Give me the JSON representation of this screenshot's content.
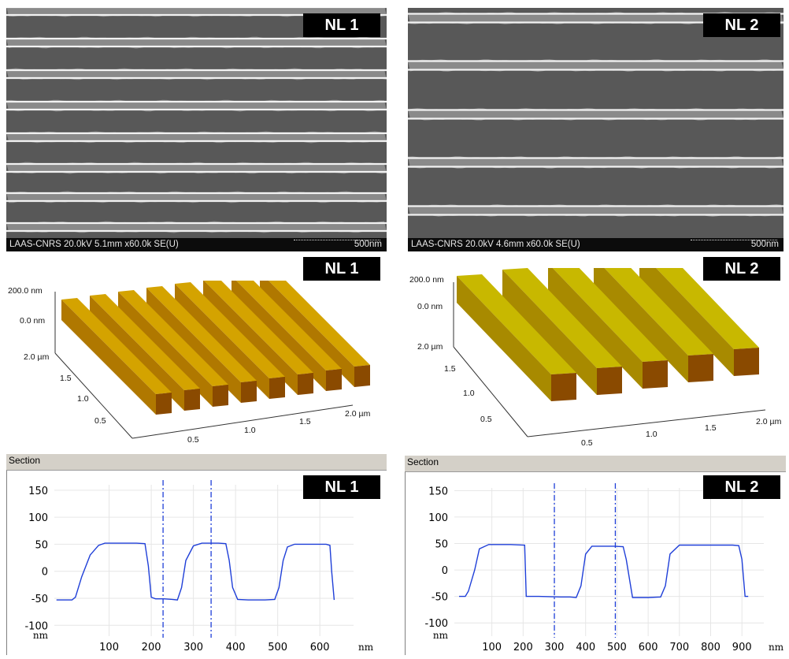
{
  "panels": {
    "nl1": "NL 1",
    "nl2": "NL 2"
  },
  "sem": {
    "nl1": {
      "info": "LAAS-CNRS 20.0kV 5.1mm x60.0k SE(U)",
      "scale": "500nm"
    },
    "nl2": {
      "info": "LAAS-CNRS 20.0kV 4.6mm x60.0k SE(U)",
      "scale": "500nm"
    }
  },
  "afm": {
    "nl1": {
      "z_labels": [
        "200.0 nm",
        "0.0 nm"
      ],
      "y_labels": [
        "2.0 µm",
        "1.5",
        "1.0",
        "0.5"
      ],
      "x_labels": [
        "0.5",
        "1.0",
        "1.5",
        "2.0 µm"
      ]
    },
    "nl2": {
      "z_labels": [
        "200.0 nm",
        "0.0 nm"
      ],
      "y_labels": [
        "2.0 µm",
        "1.5",
        "1.0",
        "0.5"
      ],
      "x_labels": [
        "0.5",
        "1.0",
        "1.5",
        "2.0 µm"
      ]
    }
  },
  "section": {
    "title": "Section",
    "y_unit": "nm",
    "x_unit": "nm",
    "y_ticks": [
      150,
      100,
      50,
      0,
      -50,
      -100
    ],
    "line_color": "#1f3fd8"
  },
  "chart_data": [
    {
      "type": "line",
      "panel": "NL 1",
      "title": "Section",
      "xlabel": "nm",
      "ylabel": "nm",
      "xticks": [
        100,
        200,
        300,
        400,
        500,
        600
      ],
      "yticks": [
        150,
        100,
        50,
        0,
        -50,
        -100
      ],
      "xlim": [
        -30,
        680
      ],
      "ylim": [
        -120,
        160
      ],
      "cursors_x": [
        228,
        342
      ],
      "series": [
        {
          "x": [
            -25,
            12,
            20,
            35,
            55,
            75,
            90,
            100,
            130,
            165,
            185,
            193,
            200,
            210,
            230,
            250,
            262,
            272,
            282,
            300,
            320,
            345,
            360,
            377,
            385,
            393,
            405,
            430,
            470,
            493,
            503,
            513,
            523,
            540,
            575,
            615,
            624,
            628,
            634
          ],
          "y": [
            -53,
            -53,
            -48,
            -10,
            30,
            48,
            52,
            52,
            52,
            52,
            51,
            10,
            -48,
            -51,
            -51,
            -52,
            -53,
            -30,
            20,
            47,
            52,
            52,
            52,
            51,
            20,
            -30,
            -52,
            -53,
            -53,
            -52,
            -30,
            20,
            45,
            50,
            50,
            50,
            48,
            0,
            -53
          ]
        }
      ]
    },
    {
      "type": "line",
      "panel": "NL 2",
      "title": "Section",
      "xlabel": "nm",
      "ylabel": "nm",
      "xticks": [
        100,
        200,
        300,
        400,
        500,
        600,
        700,
        800,
        900
      ],
      "yticks": [
        150,
        100,
        50,
        0,
        -50,
        -100
      ],
      "xlim": [
        -20,
        970
      ],
      "ylim": [
        -125,
        155
      ],
      "cursors_x": [
        300,
        495
      ],
      "series": [
        {
          "x": [
            -5,
            15,
            25,
            45,
            60,
            90,
            160,
            205,
            210,
            220,
            250,
            320,
            350,
            370,
            385,
            400,
            420,
            450,
            490,
            520,
            530,
            550,
            600,
            640,
            655,
            670,
            700,
            740,
            800,
            870,
            890,
            900,
            910,
            920
          ],
          "y": [
            -50,
            -50,
            -40,
            0,
            40,
            48,
            48,
            47,
            -50,
            -50,
            -50,
            -51,
            -51,
            -52,
            -30,
            30,
            45,
            45,
            45,
            44,
            20,
            -52,
            -52,
            -51,
            -30,
            30,
            47,
            47,
            47,
            47,
            46,
            20,
            -50,
            -50
          ]
        }
      ]
    }
  ]
}
